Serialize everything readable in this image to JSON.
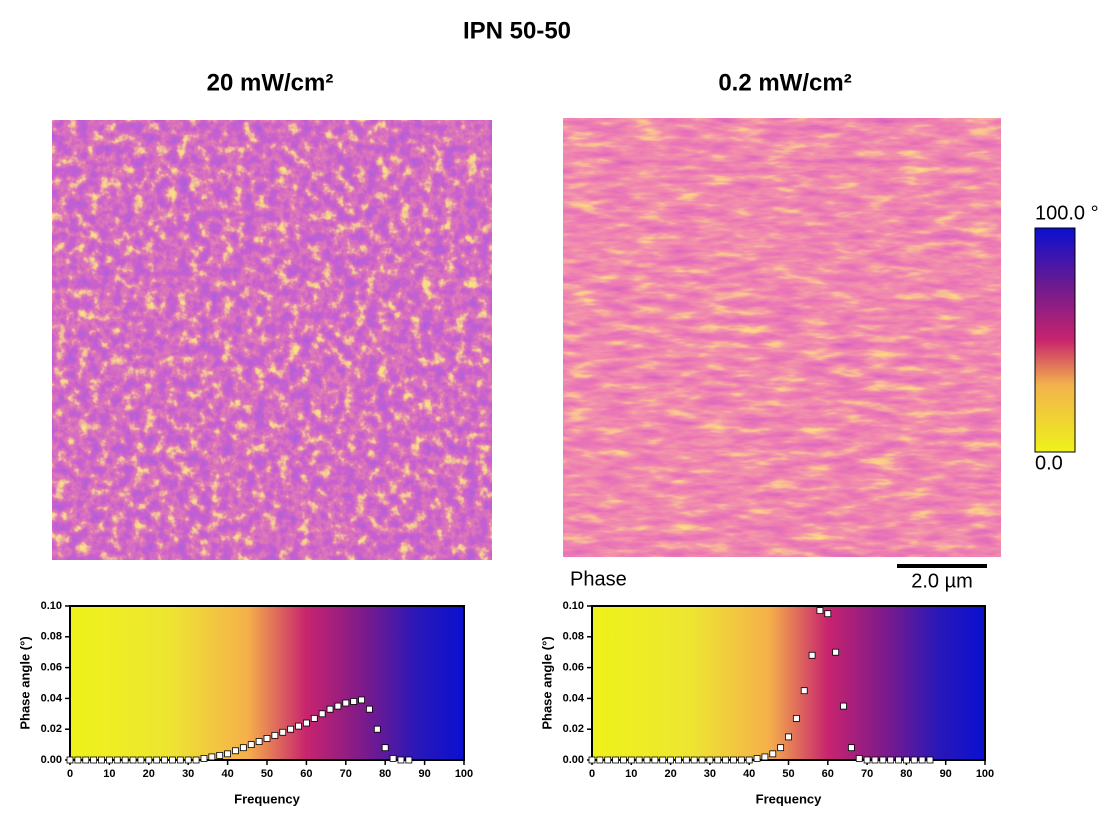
{
  "title": "IPN 50-50",
  "panels": [
    {
      "label": "20 mW/cm²"
    },
    {
      "label": "0.2 mW/cm²"
    }
  ],
  "image_label": "Phase",
  "scale_bar": "2.0 µm",
  "colorbar": {
    "max_label": "100.0 °",
    "min_label": "0.0"
  },
  "chart_data": [
    {
      "type": "scatter",
      "x_label": "Frequency",
      "y_label": "Phase angle (°)",
      "marker_color": "#ffffff",
      "x": [
        0,
        2,
        4,
        6,
        8,
        10,
        12,
        14,
        16,
        18,
        20,
        22,
        24,
        26,
        28,
        30,
        32,
        34,
        36,
        38,
        40,
        42,
        44,
        46,
        48,
        50,
        52,
        54,
        56,
        58,
        60,
        62,
        64,
        66,
        68,
        70,
        72,
        74,
        76,
        78,
        80,
        82,
        84,
        86
      ],
      "values": [
        0,
        0,
        0,
        0,
        0,
        0,
        0,
        0,
        0,
        0,
        0,
        0,
        0,
        0,
        0,
        0,
        0,
        0.001,
        0.002,
        0.003,
        0.004,
        0.006,
        0.008,
        0.01,
        0.012,
        0.014,
        0.016,
        0.018,
        0.02,
        0.022,
        0.024,
        0.027,
        0.03,
        0.033,
        0.035,
        0.037,
        0.038,
        0.039,
        0.033,
        0.02,
        0.008,
        0.001,
        0,
        0
      ],
      "xlim": [
        0,
        100
      ],
      "ylim": [
        0,
        0.1
      ],
      "xticks": [
        0,
        10,
        20,
        30,
        40,
        50,
        60,
        70,
        80,
        90,
        100
      ],
      "yticks": [
        {
          "value": 0,
          "label": "0.00"
        },
        {
          "value": 0.02,
          "label": "0.02"
        },
        {
          "value": 0.04,
          "label": "0.04"
        },
        {
          "value": 0.06,
          "label": "0.06"
        },
        {
          "value": 0.08,
          "label": "0.08"
        },
        {
          "value": 0.1,
          "label": "0.10"
        }
      ]
    },
    {
      "type": "scatter",
      "x_label": "Frequency",
      "y_label": "Phase angle (°)",
      "marker_color": "#ffffff",
      "x": [
        0,
        2,
        4,
        6,
        8,
        10,
        12,
        14,
        16,
        18,
        20,
        22,
        24,
        26,
        28,
        30,
        32,
        34,
        36,
        38,
        40,
        42,
        44,
        46,
        48,
        50,
        52,
        54,
        56,
        58,
        60,
        62,
        64,
        66,
        68,
        70,
        72,
        74,
        76,
        78,
        80,
        82,
        84,
        86
      ],
      "values": [
        0,
        0,
        0,
        0,
        0,
        0,
        0,
        0,
        0,
        0,
        0,
        0,
        0,
        0,
        0,
        0,
        0,
        0,
        0,
        0,
        0,
        0.001,
        0.002,
        0.004,
        0.008,
        0.015,
        0.027,
        0.045,
        0.068,
        0.097,
        0.095,
        0.07,
        0.035,
        0.008,
        0.001,
        0,
        0,
        0,
        0,
        0,
        0,
        0,
        0,
        0
      ],
      "xlim": [
        0,
        100
      ],
      "ylim": [
        0,
        0.1
      ],
      "xticks": [
        0,
        10,
        20,
        30,
        40,
        50,
        60,
        70,
        80,
        90,
        100
      ],
      "yticks": [
        {
          "value": 0,
          "label": "0.00"
        },
        {
          "value": 0.02,
          "label": "0.02"
        },
        {
          "value": 0.04,
          "label": "0.04"
        },
        {
          "value": 0.06,
          "label": "0.06"
        },
        {
          "value": 0.08,
          "label": "0.08"
        },
        {
          "value": 0.1,
          "label": "0.10"
        }
      ]
    }
  ]
}
